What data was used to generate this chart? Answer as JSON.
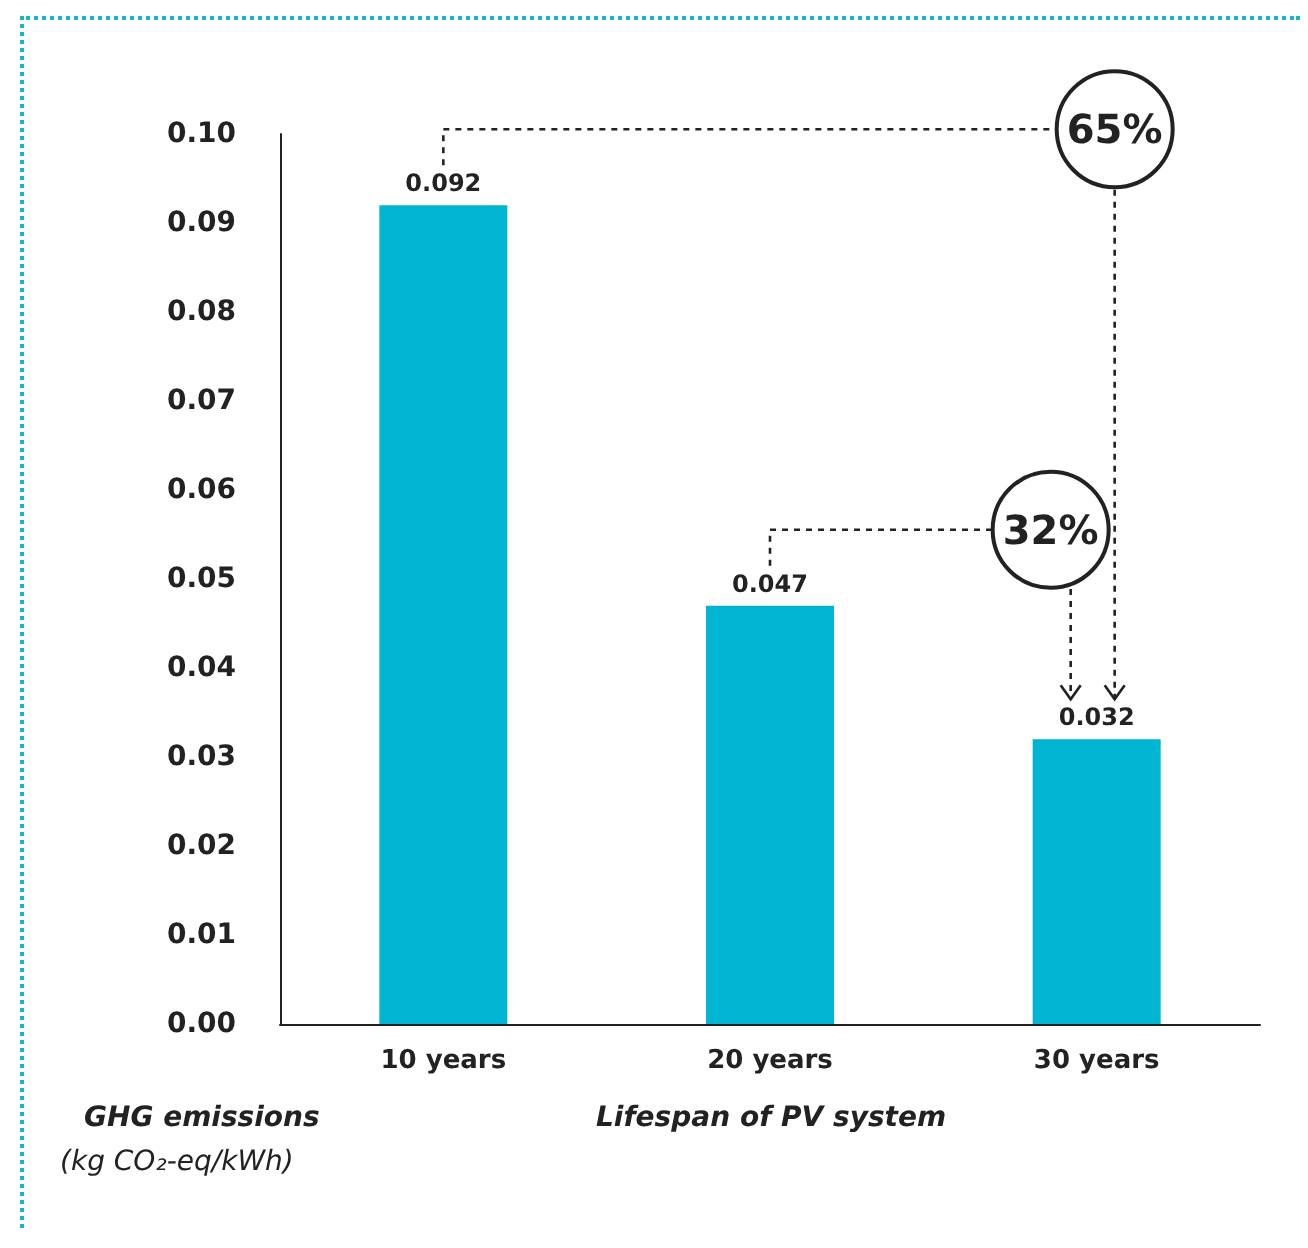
{
  "chart_data": {
    "type": "bar",
    "categories": [
      "10 years",
      "20 years",
      "30 years"
    ],
    "values": [
      0.092,
      0.047,
      0.032
    ],
    "color": "#00b5d1",
    "data_labels": true,
    "grid": false,
    "ylim": [
      0,
      0.1
    ],
    "yticks": [
      {
        "value": 0,
        "label": "0.00"
      },
      {
        "value": 0.01,
        "label": "0.01"
      },
      {
        "value": 0.02,
        "label": "0.02"
      },
      {
        "value": 0.03,
        "label": "0.03"
      },
      {
        "value": 0.04,
        "label": "0.04"
      },
      {
        "value": 0.05,
        "label": "0.05"
      },
      {
        "value": 0.06,
        "label": "0.06"
      },
      {
        "value": 0.07,
        "label": "0.07"
      },
      {
        "value": 0.08,
        "label": "0.08"
      },
      {
        "value": 0.09,
        "label": "0.09"
      },
      {
        "value": 0.1,
        "label": "0.10"
      }
    ],
    "xlabel": "Lifespan of PV system",
    "ylabel": "GHG emissions\n(kg CO₂-eq/kWh)",
    "annotations": [
      "65%",
      "32%"
    ]
  }
}
